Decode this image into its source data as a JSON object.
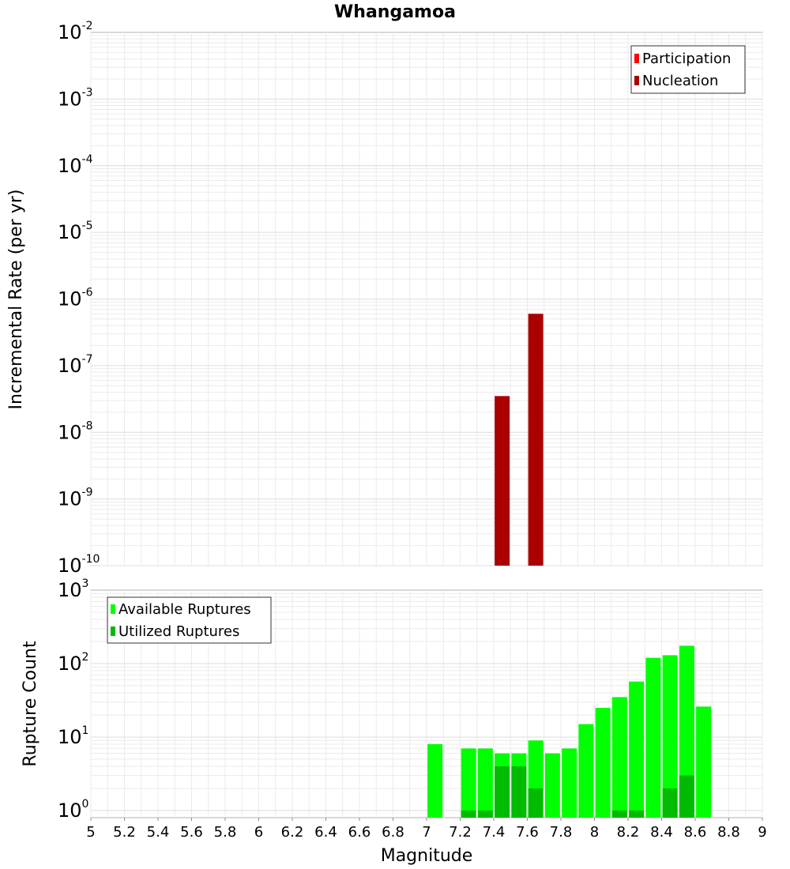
{
  "chart_data": [
    {
      "type": "bar",
      "title": "Whangamoa",
      "ylabel": "Incremental Rate (per yr)",
      "xlabel": "",
      "y_scale": "log",
      "ylim_exponents": [
        -10,
        -2
      ],
      "xlim": [
        5,
        9
      ],
      "grid": true,
      "legend_position": "top-right",
      "series": [
        {
          "name": "Participation",
          "color": "#ff0000",
          "points": []
        },
        {
          "name": "Nucleation",
          "color": "#aa0000",
          "points": [
            {
              "x": 7.45,
              "y": 3.5e-08
            },
            {
              "x": 7.65,
              "y": 6e-07
            }
          ]
        }
      ]
    },
    {
      "type": "bar",
      "xlabel": "Magnitude",
      "ylabel": "Rupture Count",
      "y_scale": "log",
      "ylim_exponents": [
        0,
        3
      ],
      "ymin_value": 0.8,
      "xlim": [
        5,
        9
      ],
      "x_ticks": [
        "5",
        "5.2",
        "5.4",
        "5.6",
        "5.8",
        "6",
        "6.2",
        "6.4",
        "6.6",
        "6.8",
        "7",
        "7.2",
        "7.4",
        "7.6",
        "7.8",
        "8",
        "8.2",
        "8.4",
        "8.6",
        "8.8",
        "9"
      ],
      "grid": true,
      "legend_position": "top-left",
      "series": [
        {
          "name": "Available Ruptures",
          "color": "#00ff00",
          "points": [
            {
              "x": 7.05,
              "y": 8
            },
            {
              "x": 7.25,
              "y": 7
            },
            {
              "x": 7.35,
              "y": 7
            },
            {
              "x": 7.45,
              "y": 6
            },
            {
              "x": 7.55,
              "y": 6
            },
            {
              "x": 7.65,
              "y": 9
            },
            {
              "x": 7.75,
              "y": 6
            },
            {
              "x": 7.85,
              "y": 7
            },
            {
              "x": 7.95,
              "y": 15
            },
            {
              "x": 8.05,
              "y": 25
            },
            {
              "x": 8.15,
              "y": 35
            },
            {
              "x": 8.25,
              "y": 57
            },
            {
              "x": 8.35,
              "y": 120
            },
            {
              "x": 8.45,
              "y": 130
            },
            {
              "x": 8.55,
              "y": 175
            },
            {
              "x": 8.65,
              "y": 26
            }
          ]
        },
        {
          "name": "Utilized Ruptures",
          "color": "#00bb00",
          "points": [
            {
              "x": 7.25,
              "y": 1
            },
            {
              "x": 7.35,
              "y": 1
            },
            {
              "x": 7.45,
              "y": 4
            },
            {
              "x": 7.55,
              "y": 4
            },
            {
              "x": 7.65,
              "y": 2
            },
            {
              "x": 8.15,
              "y": 1
            },
            {
              "x": 8.25,
              "y": 1
            },
            {
              "x": 8.45,
              "y": 2
            },
            {
              "x": 8.55,
              "y": 3
            }
          ]
        }
      ]
    }
  ]
}
